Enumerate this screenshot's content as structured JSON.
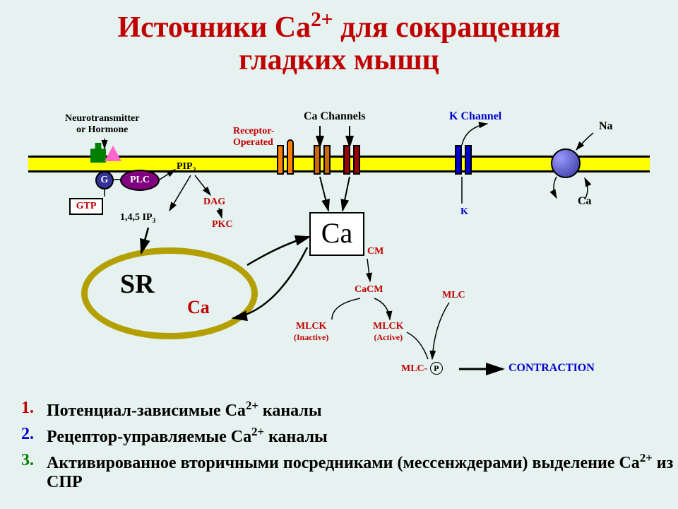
{
  "title_line1": "Источники Са",
  "title_sup": "2+",
  "title_rest": " для сокращения",
  "title_line2": "гладких мышц",
  "labels": {
    "neurotransmitter1": "Neurotransmitter",
    "neurotransmitter2": "or Hormone",
    "receptor_op1": "Receptor-",
    "receptor_op2": "Operated",
    "ca_channels": "Ca Channels",
    "k_channel": "K Channel",
    "na": "Na",
    "ca_right": "Ca",
    "k": "K",
    "g": "G",
    "plc": "PLC",
    "gtp": "GTP",
    "pip2": "PIP",
    "pip2_sub": "2",
    "ip3": "1,4,5 IP",
    "ip3_sub": "3",
    "dag": "DAG",
    "pkc": "PKC",
    "ca_big": "Ca",
    "cm": "CM",
    "cacm": "CaCM",
    "mlck_inactive": "MLCK",
    "inactive": "(Inactive)",
    "mlck_active": "MLCK",
    "active": "(Active)",
    "mlc": "MLC",
    "mlc_p": "MLC-",
    "p": "P",
    "contraction": "CONTRACTION",
    "sr": "SR",
    "ca_sr": "Ca"
  },
  "colors": {
    "red": "#c00000",
    "darkred": "#8b0000",
    "blue": "#0000cc",
    "purple": "#800080",
    "orange": "#ff8000",
    "darkorange": "#cc6600",
    "darkred2": "#990000",
    "green": "#008000",
    "pink": "#ff66cc",
    "olive": "#b3a000",
    "yellow": "#ffff00",
    "black": "#000000"
  },
  "list": [
    {
      "num": "1.",
      "color": "#c00000",
      "html": "Потенциал-зависимые Са<sup>2+</sup> каналы"
    },
    {
      "num": "2.",
      "color": "#0000cc",
      "html": "Рецептор-управляемые Са<sup>2+</sup> каналы"
    },
    {
      "num": "3.",
      "color": "#008000",
      "html": "Активированное вторичными посредниками (мессенждерами) выделение Са<sup>2+</sup> из СПР"
    }
  ]
}
